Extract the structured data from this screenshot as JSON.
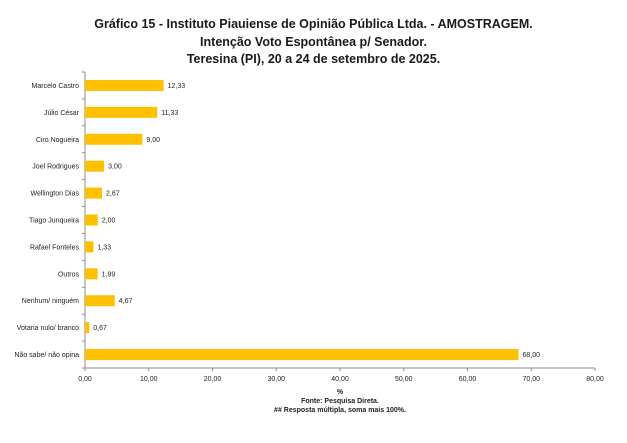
{
  "header": {
    "title_line1": "Gráfico   15   -   Instituto Piauiense de Opinião Pública Ltda. - AMOSTRAGEM.",
    "title_line2": "Intenção Voto Espontânea p/ Senador.",
    "title_line3": "Teresina (PI), 20 a 24 de setembro de 2025."
  },
  "footer": {
    "xlabel": "%",
    "source": "Fonte: Pesquisa Direta.",
    "note": "## Resposta múltipla, soma mais 100%."
  },
  "chart_data": {
    "type": "bar",
    "orientation": "horizontal",
    "categories": [
      "Marcelo Castro",
      "Júlio César",
      "Ciro Nogueira",
      "Joel Rodrigues",
      "Wellington Dias",
      "Tiago Junqueira",
      "Rafael Fonteles",
      "Outros",
      "Nenhum/ ninguém",
      "Votaria nulo/ branco",
      "Não sabe/ não opina"
    ],
    "values": [
      12.33,
      11.33,
      9.0,
      3.0,
      2.67,
      2.0,
      1.33,
      1.99,
      4.67,
      0.67,
      68.0
    ],
    "value_labels": [
      "12,33",
      "11,33",
      "9,00",
      "3,00",
      "2,67",
      "2,00",
      "1,33",
      "1,99",
      "4,67",
      "0,67",
      "68,00"
    ],
    "xlim": [
      0,
      80
    ],
    "x_ticks": [
      0,
      10,
      20,
      30,
      40,
      50,
      60,
      70,
      80
    ],
    "x_tick_labels": [
      "0,00",
      "10,00",
      "20,00",
      "30,00",
      "40,00",
      "50,00",
      "60,00",
      "70,00",
      "80,00"
    ],
    "xlabel": "%",
    "grid": false,
    "legend": "none",
    "bar_color": "#FFC000"
  }
}
